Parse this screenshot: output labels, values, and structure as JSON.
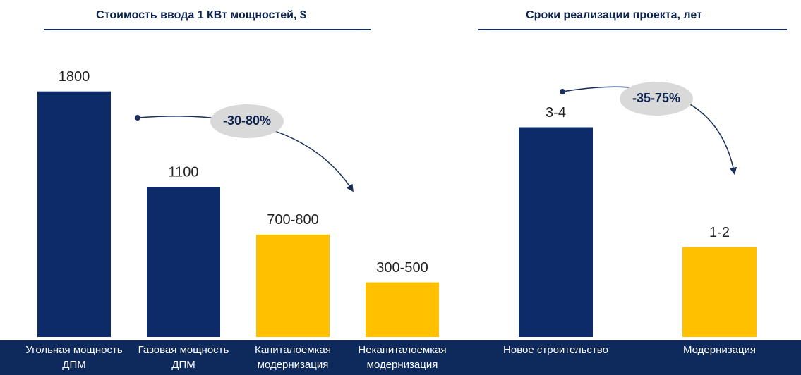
{
  "chart_data": [
    {
      "type": "bar",
      "title": "Стоимость ввода 1 КВт мощностей, $",
      "categories": [
        "Угольная мощность ДПМ",
        "Газовая мощность ДПМ",
        "Капиталоемкая модернизация",
        "Некапиталоемкая модернизация"
      ],
      "values": [
        1800,
        1100,
        750,
        400
      ],
      "value_labels": [
        "1800",
        "1100",
        "700-800",
        "300-500"
      ],
      "colors": [
        "#0d2b69",
        "#0d2b69",
        "#ffc000",
        "#ffc000"
      ],
      "ylim": [
        0,
        2000
      ],
      "annotation": "-30-80%"
    },
    {
      "type": "bar",
      "title": "Сроки реализации проекта, лет",
      "categories": [
        "Новое строительство",
        "Модернизация"
      ],
      "values": [
        3.5,
        1.5
      ],
      "value_labels": [
        "3-4",
        "1-2"
      ],
      "colors": [
        "#0d2b69",
        "#ffc000"
      ],
      "ylim": [
        0,
        5
      ],
      "annotation": "-35-75%"
    }
  ]
}
